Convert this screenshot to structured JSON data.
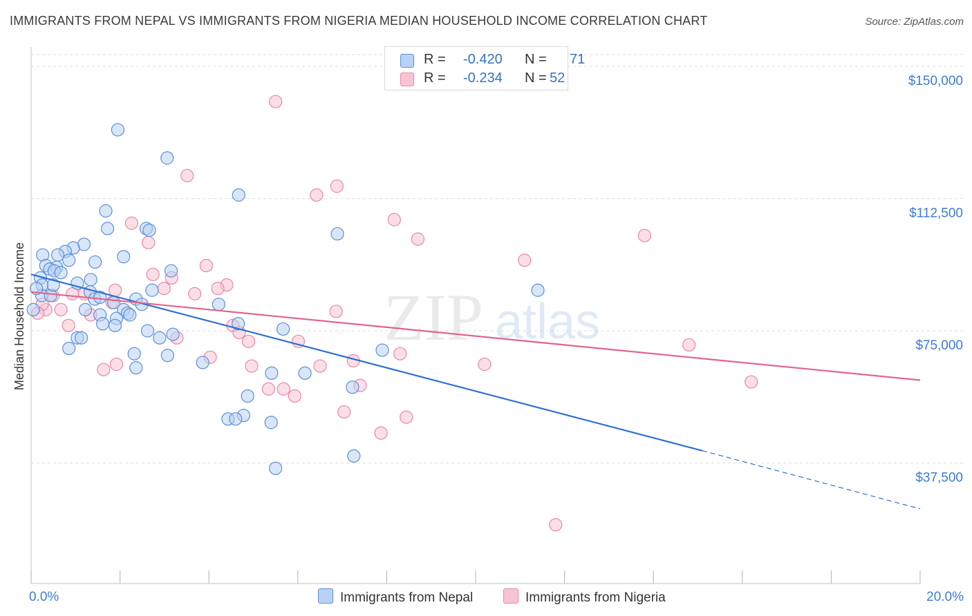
{
  "title": "IMMIGRANTS FROM NEPAL VS IMMIGRANTS FROM NIGERIA MEDIAN HOUSEHOLD INCOME CORRELATION CHART",
  "source": "Source: ZipAtlas.com",
  "watermark": {
    "zip": "ZIP",
    "atlas": "atlas"
  },
  "legend": {
    "nepal": {
      "r_label": "R =",
      "r_value": "-0.420",
      "n_label": "N =",
      "n_value": "71"
    },
    "nigeria": {
      "r_label": "R =",
      "r_value": "-0.234",
      "n_label": "N =",
      "n_value": "52"
    }
  },
  "bottom_legend": {
    "nepal": "Immigrants from Nepal",
    "nigeria": "Immigrants from Nigeria"
  },
  "colors": {
    "nepal_fill": "#b8d2f3",
    "nepal_stroke": "#5b8fd6",
    "nepal_line": "#2e6fcf",
    "nigeria_fill": "#f8c4d4",
    "nigeria_stroke": "#e887a8",
    "nigeria_line": "#e0638f",
    "tick_label": "#3f7bd0",
    "grid": "#dddddd"
  },
  "chart_data": {
    "type": "scatter",
    "title": "IMMIGRANTS FROM NEPAL VS IMMIGRANTS FROM NIGERIA MEDIAN HOUSEHOLD INCOME CORRELATION CHART",
    "xlabel": "",
    "ylabel": "Median Household Income",
    "xlim": [
      0,
      20
    ],
    "ylim": [
      0,
      155000
    ],
    "x_tick_labels": [
      "0.0%",
      "20.0%"
    ],
    "y_ticks": [
      37500,
      75000,
      112500,
      150000
    ],
    "y_tick_labels": [
      "$37,500",
      "$75,000",
      "$112,500",
      "$150,000"
    ],
    "series": [
      {
        "name": "Immigrants from Nepal",
        "r": -0.42,
        "n": 71,
        "trend": {
          "x0": 0,
          "y0": 91000,
          "x1": 15.1,
          "y1": 41000,
          "dash_x1": 20,
          "dash_y1": 24500
        },
        "points": [
          [
            1.95,
            132000
          ],
          [
            3.06,
            124000
          ],
          [
            4.67,
            113500
          ],
          [
            1.68,
            109000
          ],
          [
            1.72,
            104000
          ],
          [
            2.59,
            104000
          ],
          [
            2.66,
            103500
          ],
          [
            6.89,
            102500
          ],
          [
            1.19,
            99500
          ],
          [
            0.95,
            98500
          ],
          [
            0.77,
            97500
          ],
          [
            0.26,
            96500
          ],
          [
            0.6,
            96500
          ],
          [
            2.08,
            96000
          ],
          [
            0.85,
            95000
          ],
          [
            1.44,
            94500
          ],
          [
            0.33,
            93500
          ],
          [
            0.57,
            93000
          ],
          [
            0.42,
            92500
          ],
          [
            0.52,
            92000
          ],
          [
            3.15,
            92000
          ],
          [
            0.67,
            91500
          ],
          [
            0.21,
            90000
          ],
          [
            1.34,
            89500
          ],
          [
            1.04,
            88500
          ],
          [
            0.25,
            88000
          ],
          [
            11.4,
            86500
          ],
          [
            2.72,
            86500
          ],
          [
            1.33,
            86000
          ],
          [
            0.24,
            85000
          ],
          [
            0.44,
            85000
          ],
          [
            1.43,
            84000
          ],
          [
            2.36,
            84000
          ],
          [
            1.86,
            83000
          ],
          [
            4.22,
            82500
          ],
          [
            2.49,
            82500
          ],
          [
            1.22,
            81000
          ],
          [
            2.08,
            81000
          ],
          [
            2.17,
            80000
          ],
          [
            1.55,
            79500
          ],
          [
            2.22,
            79500
          ],
          [
            1.92,
            78500
          ],
          [
            4.66,
            77000
          ],
          [
            1.61,
            77000
          ],
          [
            1.89,
            76500
          ],
          [
            5.67,
            75500
          ],
          [
            2.62,
            75000
          ],
          [
            3.19,
            74000
          ],
          [
            1.04,
            73000
          ],
          [
            1.13,
            73000
          ],
          [
            2.89,
            73000
          ],
          [
            0.85,
            70000
          ],
          [
            7.9,
            69500
          ],
          [
            2.32,
            68500
          ],
          [
            3.07,
            68000
          ],
          [
            3.86,
            66000
          ],
          [
            2.36,
            64500
          ],
          [
            5.41,
            63000
          ],
          [
            6.16,
            63000
          ],
          [
            7.23,
            59000
          ],
          [
            4.87,
            56500
          ],
          [
            4.78,
            51000
          ],
          [
            4.43,
            50000
          ],
          [
            4.6,
            50000
          ],
          [
            5.4,
            49000
          ],
          [
            5.5,
            36000
          ],
          [
            7.26,
            39500
          ],
          [
            0.05,
            81000
          ],
          [
            0.12,
            87000
          ],
          [
            0.5,
            88000
          ],
          [
            1.55,
            84500
          ]
        ]
      },
      {
        "name": "Immigrants from Nigeria",
        "r": -0.234,
        "n": 52,
        "trend": {
          "x0": 0,
          "y0": 86000,
          "x1": 20,
          "y1": 61000
        },
        "points": [
          [
            5.5,
            140000
          ],
          [
            3.51,
            119000
          ],
          [
            6.88,
            116000
          ],
          [
            6.42,
            113500
          ],
          [
            8.17,
            106500
          ],
          [
            2.26,
            105500
          ],
          [
            13.8,
            102000
          ],
          [
            8.7,
            101000
          ],
          [
            2.64,
            100000
          ],
          [
            11.1,
            95000
          ],
          [
            3.94,
            93500
          ],
          [
            2.74,
            91000
          ],
          [
            3.16,
            90000
          ],
          [
            4.4,
            88000
          ],
          [
            4.2,
            87000
          ],
          [
            2.99,
            87000
          ],
          [
            1.89,
            86500
          ],
          [
            0.93,
            85500
          ],
          [
            1.2,
            85500
          ],
          [
            3.68,
            85500
          ],
          [
            0.49,
            85000
          ],
          [
            1.82,
            83000
          ],
          [
            0.67,
            81000
          ],
          [
            0.33,
            81000
          ],
          [
            6.86,
            80500
          ],
          [
            1.34,
            79500
          ],
          [
            0.84,
            76500
          ],
          [
            4.54,
            76500
          ],
          [
            4.68,
            74500
          ],
          [
            3.28,
            73000
          ],
          [
            6.01,
            72000
          ],
          [
            4.89,
            72000
          ],
          [
            14.8,
            71000
          ],
          [
            8.3,
            68500
          ],
          [
            4.03,
            67500
          ],
          [
            7.25,
            66500
          ],
          [
            1.92,
            65500
          ],
          [
            10.2,
            65500
          ],
          [
            4.96,
            65000
          ],
          [
            6.5,
            65000
          ],
          [
            1.63,
            64000
          ],
          [
            16.2,
            60500
          ],
          [
            7.4,
            59500
          ],
          [
            5.34,
            58500
          ],
          [
            5.68,
            58500
          ],
          [
            5.93,
            56500
          ],
          [
            7.04,
            52000
          ],
          [
            8.44,
            50500
          ],
          [
            7.87,
            46000
          ],
          [
            11.8,
            20000
          ],
          [
            0.25,
            82500
          ],
          [
            0.15,
            80000
          ]
        ]
      }
    ]
  }
}
